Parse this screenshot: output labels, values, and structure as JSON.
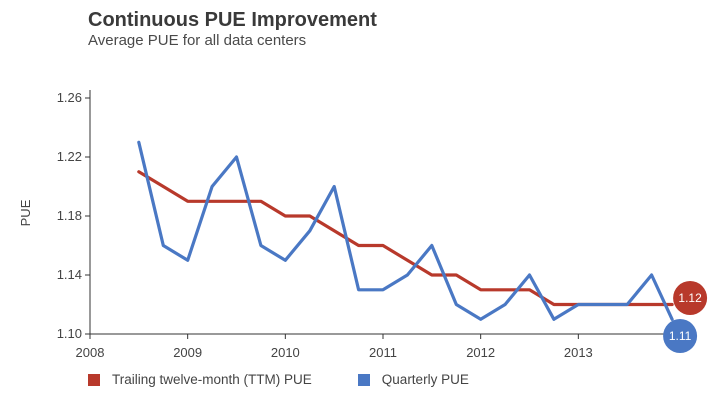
{
  "chart_data": {
    "type": "line",
    "title": "Continuous PUE Improvement",
    "subtitle": "Average PUE for all data centers",
    "xlabel": "",
    "ylabel": "PUE",
    "xlim": [
      2008,
      2014
    ],
    "ylim": [
      1.1,
      1.26
    ],
    "x_ticks": [
      "2008",
      "2009",
      "2010",
      "2011",
      "2012",
      "2013"
    ],
    "y_ticks": [
      "1.10",
      "1.14",
      "1.18",
      "1.22",
      "1.26"
    ],
    "grid": false,
    "legend_position": "bottom-left",
    "series": [
      {
        "name": "Trailing twelve-month (TTM) PUE",
        "color": "#b8392b",
        "end_label": "1.12",
        "x": [
          2008.5,
          2008.75,
          2009.0,
          2009.25,
          2009.5,
          2009.75,
          2010.0,
          2010.25,
          2010.5,
          2010.75,
          2011.0,
          2011.25,
          2011.5,
          2011.75,
          2012.0,
          2012.25,
          2012.5,
          2012.75,
          2013.0,
          2013.25,
          2013.5,
          2013.75,
          2013.96
        ],
        "values": [
          1.21,
          1.2,
          1.19,
          1.19,
          1.19,
          1.19,
          1.18,
          1.18,
          1.17,
          1.16,
          1.16,
          1.15,
          1.14,
          1.14,
          1.13,
          1.13,
          1.13,
          1.12,
          1.12,
          1.12,
          1.12,
          1.12,
          1.12
        ]
      },
      {
        "name": "Quarterly PUE",
        "color": "#4a78c4",
        "end_label": "1.11",
        "x": [
          2008.5,
          2008.75,
          2009.0,
          2009.25,
          2009.5,
          2009.75,
          2010.0,
          2010.25,
          2010.5,
          2010.75,
          2011.0,
          2011.25,
          2011.5,
          2011.75,
          2012.0,
          2012.25,
          2012.5,
          2012.75,
          2013.0,
          2013.25,
          2013.5,
          2013.75,
          2013.96
        ],
        "values": [
          1.23,
          1.16,
          1.15,
          1.2,
          1.22,
          1.16,
          1.15,
          1.17,
          1.2,
          1.13,
          1.13,
          1.14,
          1.16,
          1.12,
          1.11,
          1.12,
          1.14,
          1.11,
          1.12,
          1.12,
          1.12,
          1.14,
          1.11
        ]
      }
    ]
  }
}
